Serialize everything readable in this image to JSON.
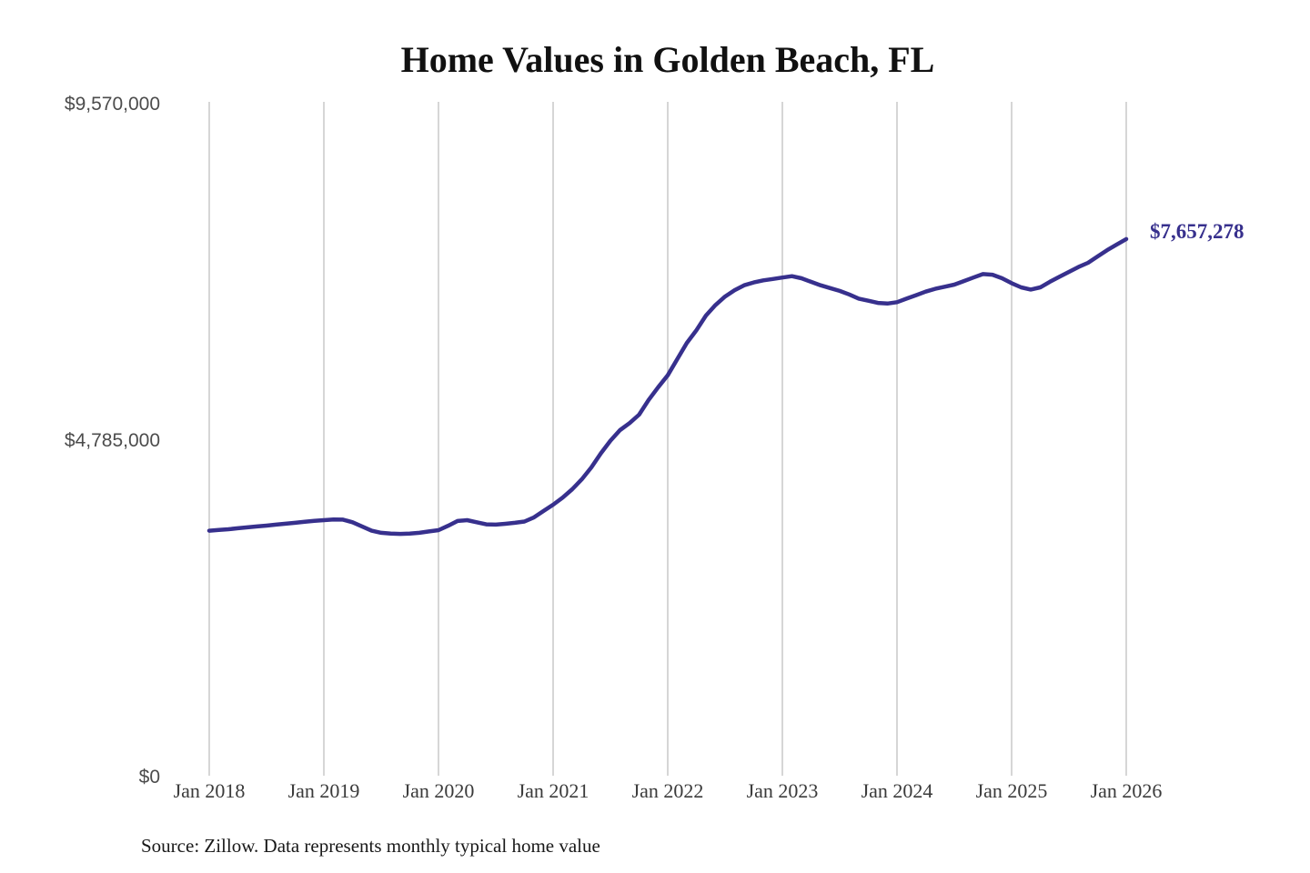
{
  "header": {
    "title": "Home Values in Golden Beach, FL"
  },
  "footer": {
    "source_note": "Source: Zillow. Data represents monthly typical home value"
  },
  "chart_data": {
    "type": "line",
    "title": "Home Values in Golden Beach, FL",
    "series_name": "Monthly typical home value",
    "x_start": "2018-01",
    "x_end": "2026-01",
    "x_interval": "monthly",
    "x_tick_labels": [
      "Jan 2018",
      "Jan 2019",
      "Jan 2020",
      "Jan 2021",
      "Jan 2022",
      "Jan 2023",
      "Jan 2024",
      "Jan 2025",
      "Jan 2026"
    ],
    "y_tick_values": [
      0,
      4785000,
      9570000
    ],
    "y_tick_labels": [
      "$0",
      "$4,785,000",
      "$9,570,000"
    ],
    "ylim": [
      0,
      9570000
    ],
    "grid": "vertical-only",
    "legend": "none",
    "end_label": "$7,657,278",
    "end_value": 7657278,
    "line_color": "#37308d",
    "gridline_color": "#c9c9c9",
    "values": [
      3510000,
      3520000,
      3530000,
      3545000,
      3558000,
      3570000,
      3582000,
      3596000,
      3610000,
      3622000,
      3636000,
      3650000,
      3660000,
      3670000,
      3668000,
      3630000,
      3570000,
      3510000,
      3480000,
      3470000,
      3465000,
      3470000,
      3480000,
      3500000,
      3518000,
      3580000,
      3648000,
      3660000,
      3630000,
      3600000,
      3596000,
      3608000,
      3622000,
      3641000,
      3700000,
      3790000,
      3880000,
      3980000,
      4100000,
      4240000,
      4410000,
      4610000,
      4790000,
      4940000,
      5040000,
      5160000,
      5370000,
      5550000,
      5720000,
      5950000,
      6180000,
      6360000,
      6570000,
      6720000,
      6840000,
      6930000,
      7000000,
      7040000,
      7070000,
      7090000,
      7110000,
      7130000,
      7100000,
      7050000,
      7000000,
      6960000,
      6920000,
      6870000,
      6810000,
      6780000,
      6750000,
      6740000,
      6760000,
      6810000,
      6860000,
      6910000,
      6950000,
      6980000,
      7010000,
      7060000,
      7110000,
      7160000,
      7150000,
      7100000,
      7030000,
      6970000,
      6940000,
      6970000,
      7050000,
      7120000,
      7190000,
      7260000,
      7320000,
      7410000,
      7500000,
      7580000,
      7657278
    ]
  }
}
